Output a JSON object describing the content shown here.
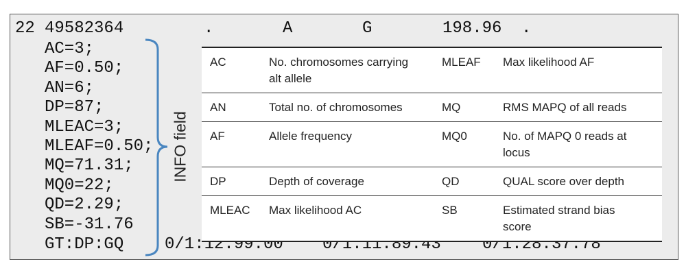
{
  "record": {
    "chrom": "22",
    "pos": "49582364",
    "id": ".",
    "ref": "A",
    "alt": "G",
    "qual": "198.96",
    "filter": "."
  },
  "info": [
    "AC=3;",
    "AF=0.50;",
    "AN=6;",
    "DP=87;",
    "MLEAC=3;",
    "MLEAF=0.50;",
    "MQ=71.31;",
    "MQ0=22;",
    "QD=2.29;",
    "SB=-31.76"
  ],
  "format": "GT:DP:GQ",
  "samples": [
    "0/1:12:99.00",
    "0/1:11:89.43",
    "0/1:28:37.78"
  ],
  "bracket_label": "INFO field",
  "table": {
    "rows": [
      [
        "AC",
        "No. chromosomes carrying alt allele",
        "MLEAF",
        "Max likelihood AF"
      ],
      [
        "AN",
        "Total no. of chromosomes",
        "MQ",
        "RMS MAPQ of all reads"
      ],
      [
        "AF",
        "Allele frequency",
        "MQ0",
        "No. of MAPQ 0 reads at locus"
      ],
      [
        "DP",
        "Depth of coverage",
        "QD",
        "QUAL score over depth"
      ],
      [
        "MLEAC",
        "Max likelihood AC",
        "SB",
        "Estimated strand bias score"
      ]
    ]
  }
}
